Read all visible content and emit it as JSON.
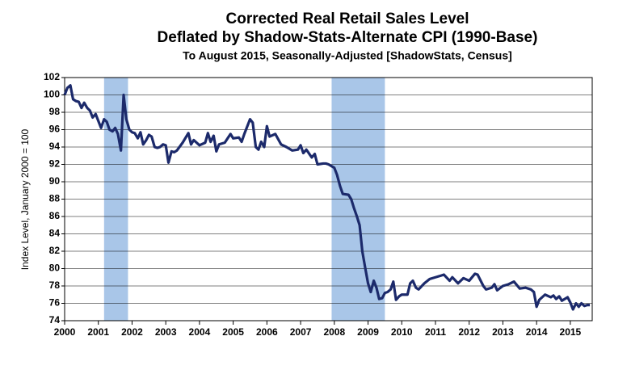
{
  "chart_data": {
    "type": "line",
    "title": "Corrected Real Retail Sales Level",
    "subtitle": "Deflated by Shadow-Stats-Alternate CPI (1990-Base)",
    "subtitle2": "To August 2015, Seasonally-Adjusted [ShadowStats, Census]",
    "y_label": "Index Level, January 2000 = 100",
    "x": [
      2000.0,
      2000.08,
      2000.17,
      2000.25,
      2000.33,
      2000.42,
      2000.5,
      2000.58,
      2000.67,
      2000.75,
      2000.83,
      2000.92,
      2001.0,
      2001.08,
      2001.17,
      2001.25,
      2001.33,
      2001.42,
      2001.5,
      2001.58,
      2001.67,
      2001.75,
      2001.83,
      2001.92,
      2002.0,
      2002.08,
      2002.17,
      2002.25,
      2002.33,
      2002.42,
      2002.5,
      2002.58,
      2002.67,
      2002.75,
      2002.83,
      2002.92,
      2003.0,
      2003.08,
      2003.17,
      2003.25,
      2003.33,
      2003.5,
      2003.67,
      2003.75,
      2003.83,
      2004.0,
      2004.17,
      2004.25,
      2004.33,
      2004.42,
      2004.5,
      2004.58,
      2004.75,
      2004.92,
      2005.0,
      2005.17,
      2005.25,
      2005.33,
      2005.5,
      2005.58,
      2005.67,
      2005.75,
      2005.83,
      2005.92,
      2006.0,
      2006.08,
      2006.25,
      2006.42,
      2006.58,
      2006.75,
      2006.92,
      2007.0,
      2007.08,
      2007.17,
      2007.33,
      2007.42,
      2007.5,
      2007.67,
      2007.75,
      2007.83,
      2008.0,
      2008.08,
      2008.17,
      2008.25,
      2008.42,
      2008.5,
      2008.58,
      2008.67,
      2008.75,
      2008.83,
      2008.92,
      2009.0,
      2009.08,
      2009.17,
      2009.25,
      2009.33,
      2009.42,
      2009.5,
      2009.58,
      2009.67,
      2009.75,
      2009.83,
      2009.92,
      2010.0,
      2010.17,
      2010.25,
      2010.33,
      2010.42,
      2010.5,
      2010.67,
      2010.83,
      2011.0,
      2011.17,
      2011.25,
      2011.42,
      2011.5,
      2011.67,
      2011.83,
      2012.0,
      2012.17,
      2012.25,
      2012.42,
      2012.5,
      2012.67,
      2012.75,
      2012.83,
      2013.0,
      2013.17,
      2013.33,
      2013.5,
      2013.67,
      2013.83,
      2013.92,
      2014.0,
      2014.08,
      2014.25,
      2014.42,
      2014.5,
      2014.58,
      2014.67,
      2014.75,
      2014.92,
      2015.0,
      2015.08,
      2015.17,
      2015.25,
      2015.33,
      2015.42,
      2015.5,
      2015.58
    ],
    "series": [
      {
        "color": "#1c2a6b",
        "values": [
          100.0,
          100.8,
          101.1,
          99.5,
          99.3,
          99.2,
          98.5,
          99.1,
          98.5,
          98.2,
          97.4,
          97.8,
          97.0,
          96.2,
          97.2,
          96.9,
          96.0,
          95.8,
          96.2,
          95.5,
          93.6,
          100.0,
          97.2,
          96.0,
          95.7,
          95.6,
          95.0,
          95.7,
          94.3,
          94.8,
          95.4,
          95.2,
          94.0,
          93.9,
          94.0,
          94.3,
          94.2,
          92.2,
          93.5,
          93.4,
          93.6,
          94.5,
          95.6,
          94.3,
          94.8,
          94.2,
          94.5,
          95.6,
          94.6,
          95.3,
          93.5,
          94.3,
          94.5,
          95.5,
          95.0,
          95.1,
          94.6,
          95.5,
          97.2,
          96.8,
          94.0,
          93.7,
          94.6,
          94.0,
          96.4,
          95.2,
          95.5,
          94.3,
          94.0,
          93.6,
          93.7,
          94.2,
          93.3,
          93.7,
          92.8,
          93.2,
          92.0,
          92.1,
          92.1,
          92.0,
          91.6,
          90.8,
          89.5,
          88.6,
          88.5,
          88.0,
          87.0,
          86.0,
          85.0,
          82.0,
          80.0,
          78.3,
          77.3,
          78.6,
          77.8,
          76.5,
          76.6,
          77.2,
          77.3,
          77.6,
          78.5,
          76.4,
          76.8,
          77.0,
          77.0,
          78.3,
          78.6,
          77.8,
          77.6,
          78.3,
          78.8,
          79.0,
          79.2,
          79.3,
          78.6,
          79.0,
          78.3,
          78.9,
          78.6,
          79.4,
          79.3,
          78.0,
          77.6,
          77.8,
          78.2,
          77.5,
          78.0,
          78.2,
          78.5,
          77.7,
          77.8,
          77.6,
          77.3,
          75.6,
          76.4,
          77.0,
          76.7,
          76.9,
          76.5,
          76.8,
          76.3,
          76.7,
          76.1,
          75.3,
          76.0,
          75.6,
          76.0,
          75.7,
          75.8,
          75.8
        ]
      }
    ],
    "shaded_spans": [
      [
        2001.17,
        2001.88
      ],
      [
        2007.92,
        2009.5
      ]
    ],
    "shade_color": "#a9c6e8",
    "xlim": [
      2000,
      2015.65
    ],
    "xticks": [
      2000,
      2001,
      2002,
      2003,
      2004,
      2005,
      2006,
      2007,
      2008,
      2009,
      2010,
      2011,
      2012,
      2013,
      2014,
      2015
    ],
    "ylim": [
      74,
      102
    ],
    "yticks": [
      74,
      76,
      78,
      80,
      82,
      84,
      86,
      88,
      90,
      92,
      94,
      96,
      98,
      100,
      102
    ],
    "grid": true
  }
}
